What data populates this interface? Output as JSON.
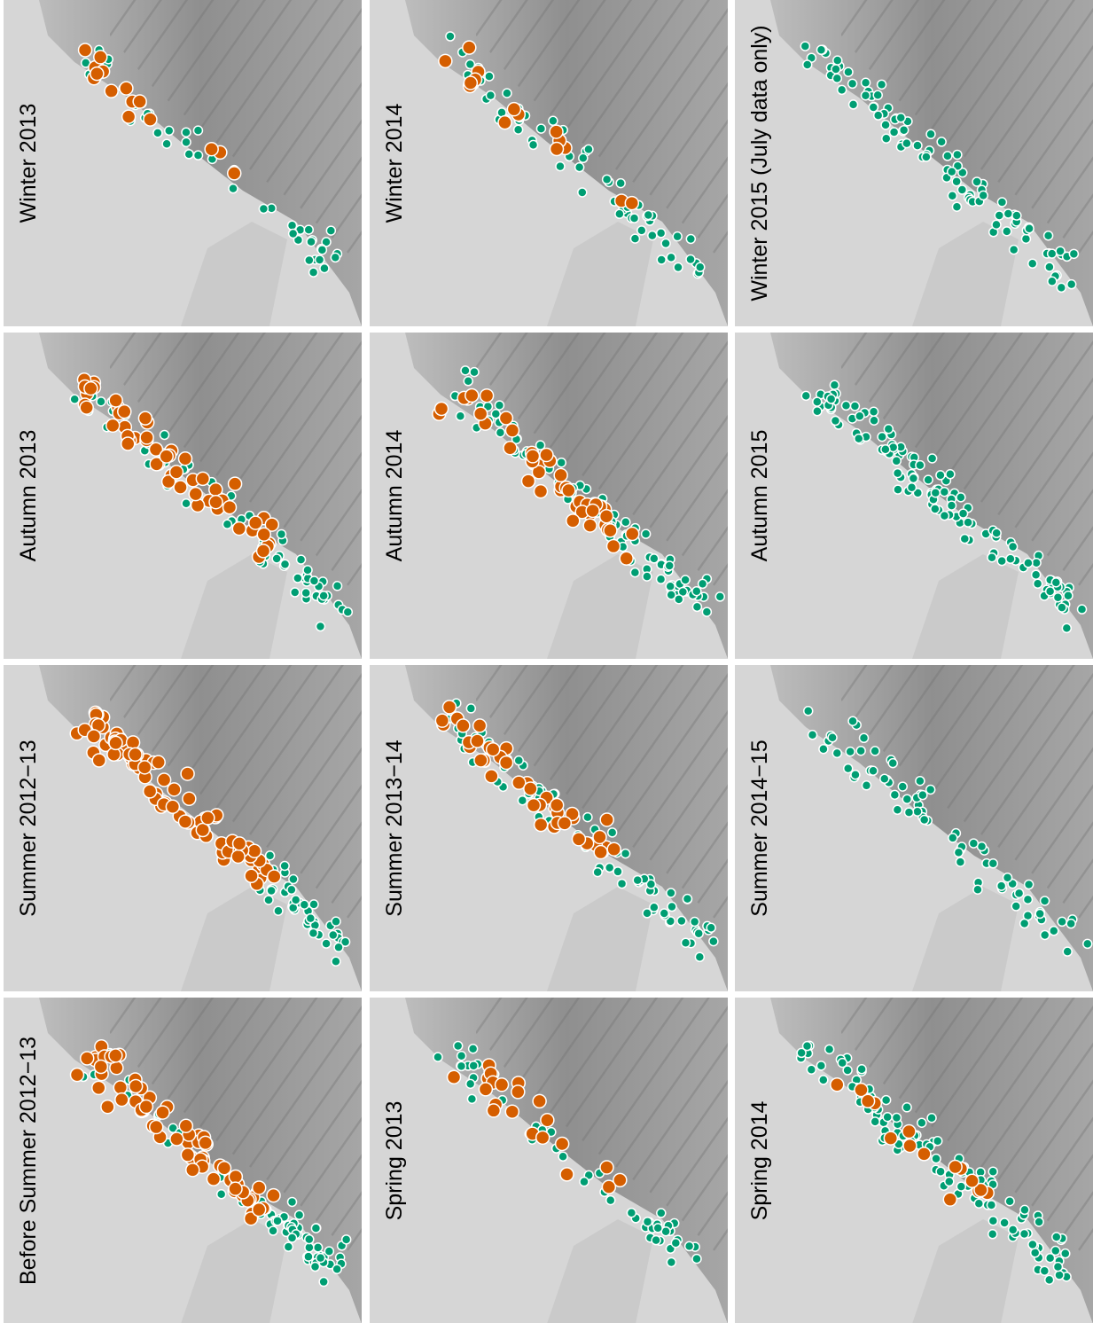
{
  "panels": [
    {
      "label": "Winter 2013"
    },
    {
      "label": "Autumn 2013"
    },
    {
      "label": "Summer 2012−13"
    },
    {
      "label": "Before Summer 2012−13"
    },
    {
      "label": "Winter 2014"
    },
    {
      "label": "Autumn 2014"
    },
    {
      "label": "Summer 2013−14"
    },
    {
      "label": "Spring 2013"
    },
    {
      "label": "Winter 2015 (July data only)"
    },
    {
      "label": "Autumn 2015"
    },
    {
      "label": "Summer 2014−15"
    },
    {
      "label": "Spring 2014"
    }
  ]
}
